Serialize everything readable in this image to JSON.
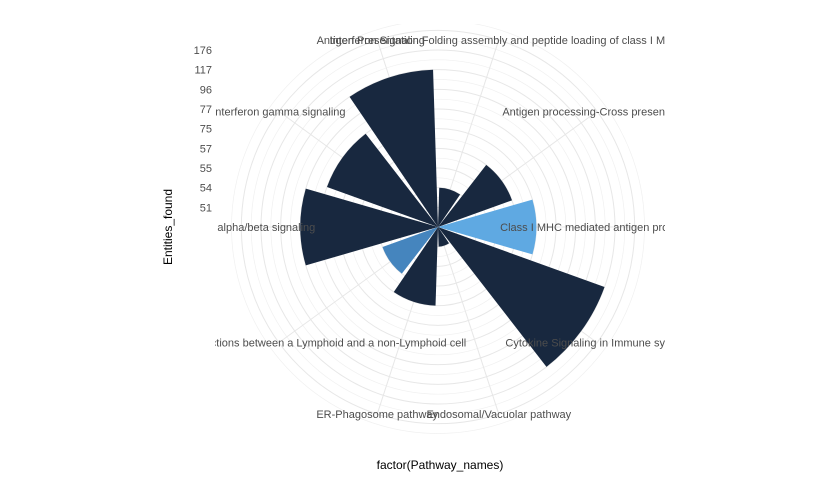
{
  "chart_data": {
    "type": "bar",
    "coord": "polar",
    "title": "",
    "xlabel": "factor(Pathway_names)",
    "ylabel": "Entities_found",
    "categories": [
      "Antigen Presentation Folding assembly and peptide loading of class I MHC",
      "Antigen processing-Cross presentation",
      "Class I MHC mediated antigen processing presentation",
      "Cytokine Signaling in Immune system",
      "Endosomal/Vacuolar pathway",
      "ER-Phagosome pathway",
      "Immunoregulatory interactions between a Lymphoid and a non-Lymphoid cell",
      "Interferon alpha/beta signaling",
      "Interferon gamma signaling",
      "Interferon Signaling"
    ],
    "values": [
      54,
      57,
      75,
      176,
      51,
      57,
      55,
      96,
      77,
      117
    ],
    "bar_colors": [
      "#18283f",
      "#18283f",
      "#5fa9e2",
      "#18283f",
      "#18283f",
      "#18283f",
      "#4585be",
      "#18283f",
      "#18283f",
      "#18283f"
    ],
    "y_ticks": [
      176,
      117,
      96,
      77,
      75,
      57,
      55,
      54,
      51
    ],
    "radial_scale": "ticks evenly spaced (rank order), bars start at center",
    "legend": "none",
    "grid": "on",
    "colors": {
      "bar_default": "#18283f",
      "bar_highlight_light": "#5fa9e2",
      "bar_highlight_medium": "#4585be",
      "gridline": "#e7e7e7",
      "gridline_minor": "#f0f0f0",
      "axis_text": "#4d4d4d",
      "title_text": "#000000",
      "background": "#ffffff"
    }
  }
}
